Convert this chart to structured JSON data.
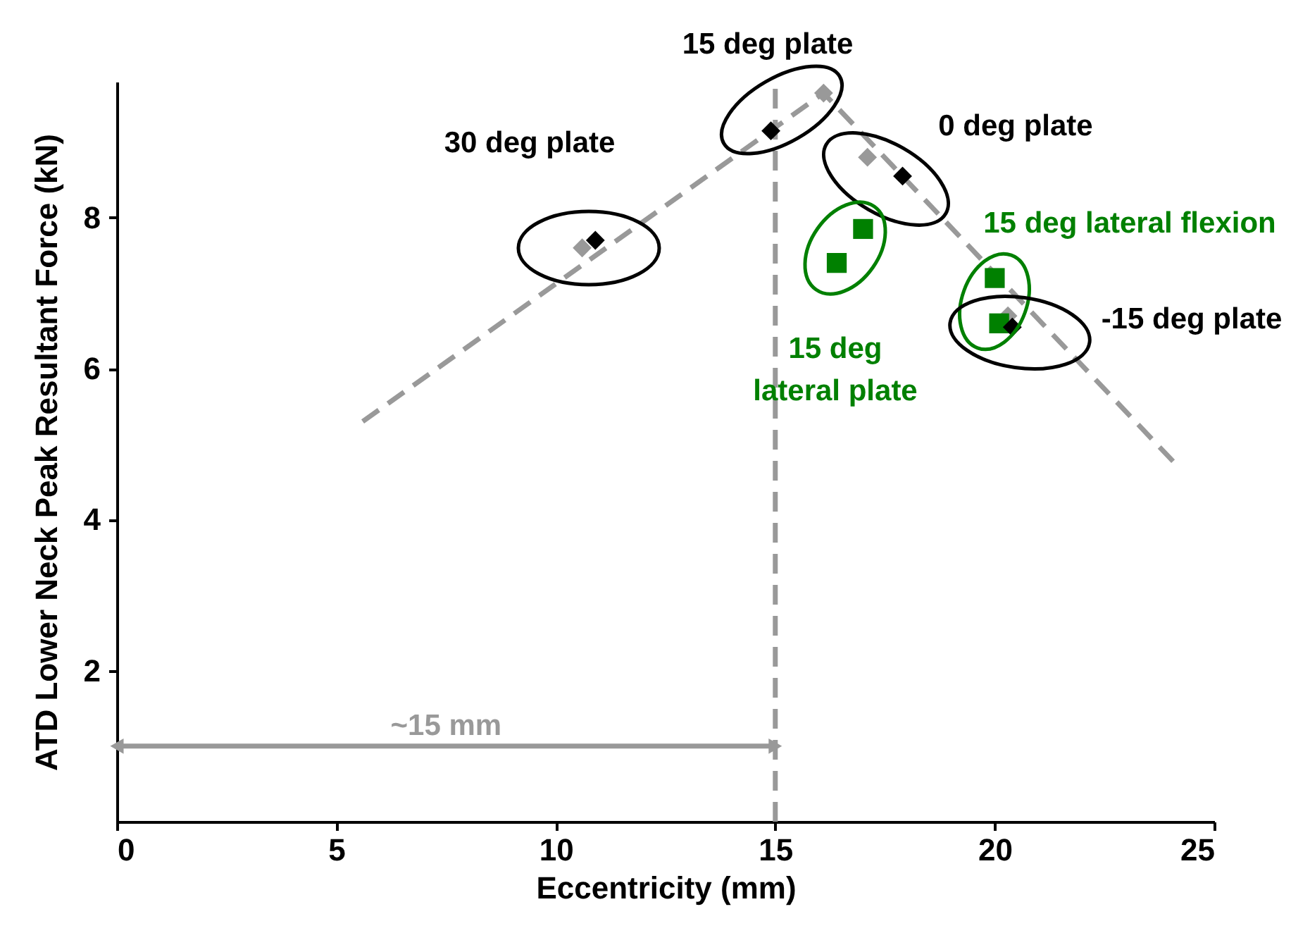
{
  "chart_data": {
    "type": "scatter",
    "xlabel": "Eccentricity (mm)",
    "ylabel": "ATD Lower Neck Peak Resultant Force (kN)",
    "xlim": [
      0,
      25
    ],
    "xticks": [
      0,
      5,
      10,
      15,
      20,
      25
    ],
    "ylim": [
      0,
      9.8
    ],
    "yticks": [
      2,
      4,
      6,
      8
    ],
    "grid": false,
    "legend": false,
    "series": [
      {
        "type": "line",
        "x": [
          5.6,
          16.1,
          24.1
        ],
        "values": [
          5.3,
          9.65,
          4.75
        ],
        "color": "#999999",
        "line_style": "dashed",
        "marker": "none"
      },
      {
        "type": "line",
        "x": [
          0,
          15
        ],
        "values": [
          1,
          1
        ],
        "color": "#999999",
        "line_style": "solid",
        "marker": "triangle"
      },
      {
        "x": [
          10.6,
          16.1,
          17.1,
          20.3
        ],
        "values": [
          7.6,
          9.65,
          8.8,
          6.7
        ],
        "color": "#999999",
        "marker": "diamond"
      },
      {
        "x": [
          16.4,
          17.0,
          20.0,
          20.1
        ],
        "values": [
          7.4,
          7.85,
          7.2,
          6.6
        ],
        "color": "#008000",
        "marker": "square"
      },
      {
        "x": [
          10.9,
          14.9,
          17.9,
          20.4
        ],
        "values": [
          7.7,
          9.15,
          8.55,
          6.55
        ],
        "color": "#000000",
        "marker": "diamond"
      }
    ],
    "ref_lines": [
      {
        "axis": "x",
        "value": 15,
        "color": "#999999",
        "line_style": "dashed"
      }
    ],
    "annotations": [
      "30 deg plate",
      "15 deg plate",
      "0 deg plate",
      "15 deg\nlateral plate",
      "15 deg lateral flexion",
      "-15 deg plate",
      {
        "text": "~15 mm",
        "x": 7.5,
        "y": 1
      }
    ]
  }
}
